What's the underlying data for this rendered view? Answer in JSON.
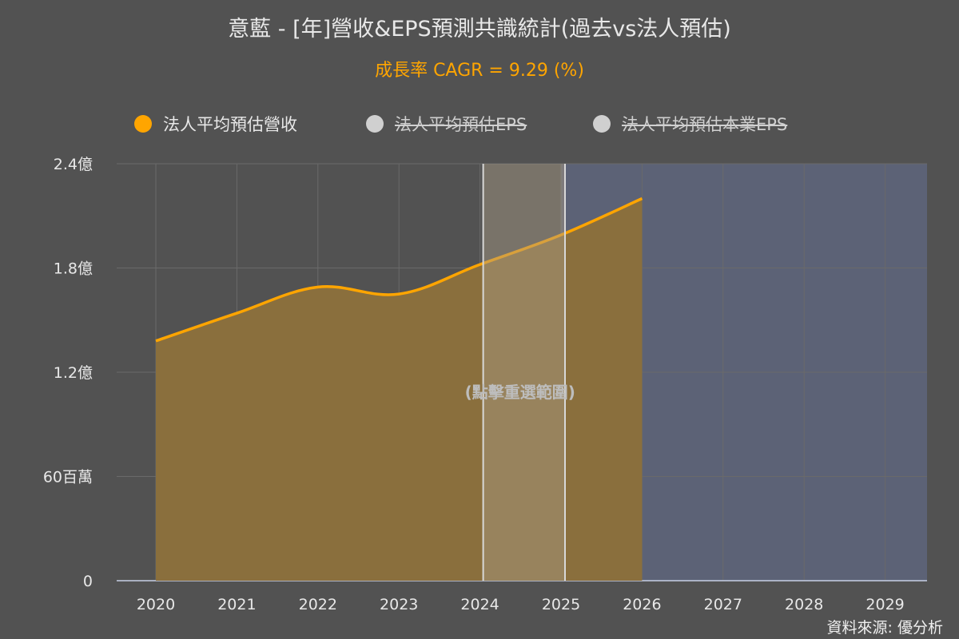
{
  "header": {
    "title": "意藍 - [年]營收&EPS預測共識統計(過去vs法人預估)",
    "subtitle": "成長率 CAGR = 9.29 (%)"
  },
  "legend": {
    "items": [
      {
        "label": "法人平均預估營收",
        "color": "#ffa500",
        "active": true
      },
      {
        "label": "法人平均預估EPS",
        "color": "#d0d0d0",
        "active": false
      },
      {
        "label": "法人平均預估本業EPS",
        "color": "#d0d0d0",
        "active": false
      }
    ]
  },
  "footer": {
    "source": "資料來源: 優分析"
  },
  "chart_data": {
    "type": "area",
    "categories": [
      "2020",
      "2021",
      "2022",
      "2023",
      "2024",
      "2025",
      "2026",
      "2027",
      "2028",
      "2029"
    ],
    "series": [
      {
        "name": "法人平均預估營收",
        "values": [
          138000000,
          154000000,
          169000000,
          165000000,
          182000000,
          199000000,
          220000000,
          null,
          null,
          null
        ],
        "color": "#ffa500"
      }
    ],
    "y_ticks": [
      {
        "value": 0,
        "label": "0"
      },
      {
        "value": 60000000,
        "label": "60百萬"
      },
      {
        "value": 120000000,
        "label": "1.2億"
      },
      {
        "value": 180000000,
        "label": "1.8億"
      },
      {
        "value": 240000000,
        "label": "2.4億"
      }
    ],
    "ylim": [
      0,
      240000000
    ],
    "grid": true,
    "selected_range": [
      "2024",
      "2025"
    ],
    "forecast_from": "2025",
    "annotation": "(點擊重選範圍)",
    "colors": {
      "area_fill": "#8a6f3d",
      "forecast_band": "#5c6276",
      "selection_band": "#a89b86",
      "grid": "#6a6a6a"
    }
  }
}
